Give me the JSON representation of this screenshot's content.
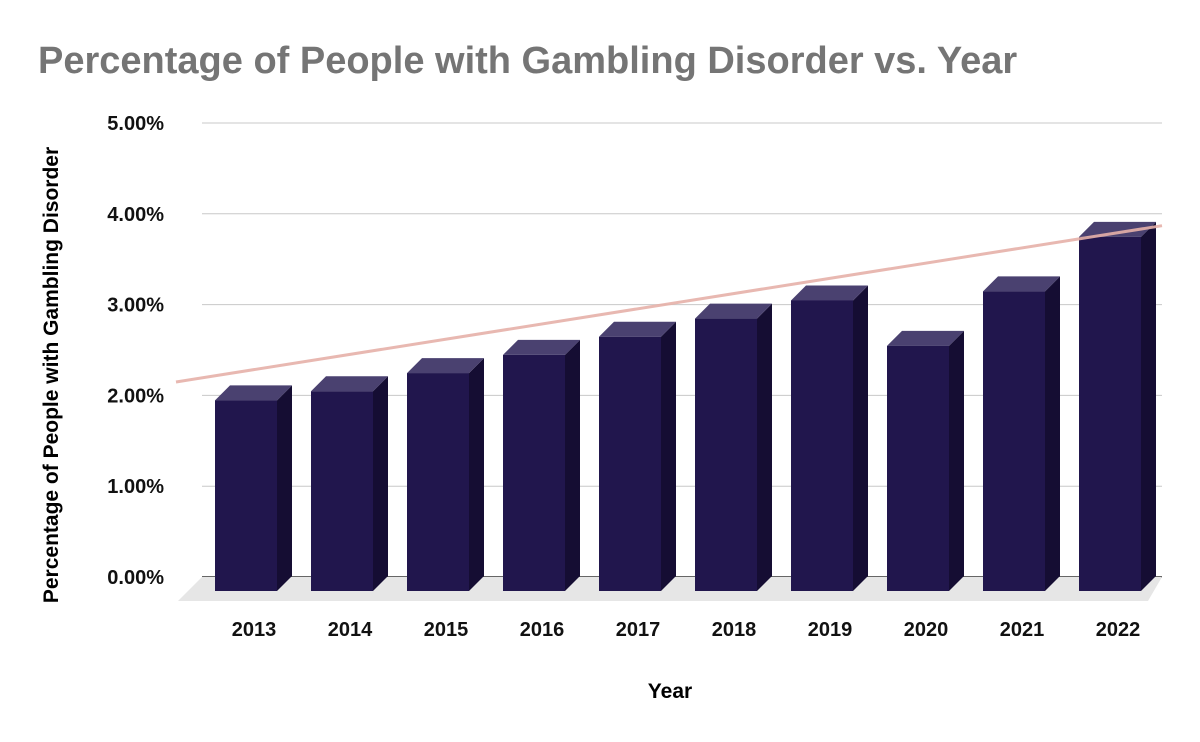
{
  "chart_data": {
    "type": "bar",
    "title": "Percentage of People with Gambling Disorder vs. Year",
    "xlabel": "Year",
    "ylabel": "Percentage of People with Gambling Disorder",
    "categories": [
      "2013",
      "2014",
      "2015",
      "2016",
      "2017",
      "2018",
      "2019",
      "2020",
      "2021",
      "2022"
    ],
    "values": [
      2.1,
      2.2,
      2.4,
      2.6,
      2.8,
      3.0,
      3.2,
      2.7,
      3.3,
      3.9
    ],
    "ylim": [
      0,
      5
    ],
    "yticks": [
      "0.00%",
      "1.00%",
      "2.00%",
      "3.00%",
      "4.00%",
      "5.00%"
    ],
    "grid": true,
    "trendline": {
      "type": "linear",
      "start_value": 2.17,
      "end_value": 3.88
    },
    "style": "3d",
    "colors": {
      "bar_front": "#21164d",
      "bar_side": "#150d33",
      "bar_top": "#4a4170",
      "trendline": "#e6b0a8",
      "grid": "#c8c8c8",
      "floor": "#e6e6e6",
      "title": "#757575"
    }
  }
}
